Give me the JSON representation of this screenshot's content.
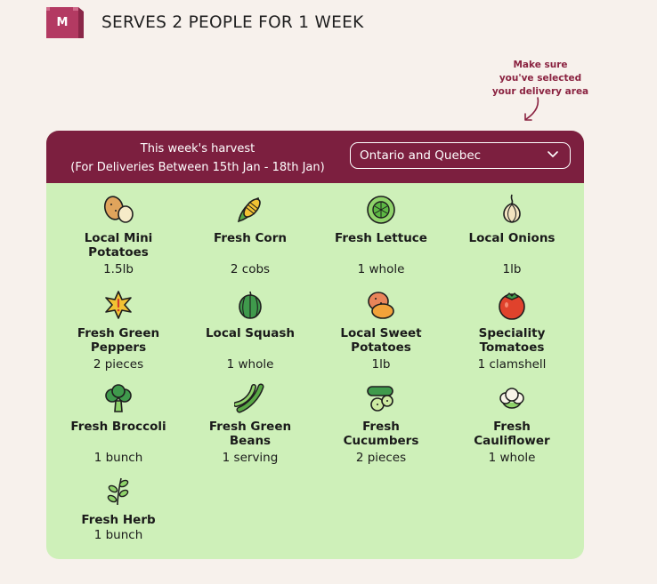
{
  "header": {
    "logo_letter": "M",
    "title": "SERVES 2 PEOPLE FOR 1 WEEK"
  },
  "note": {
    "line1": "Make sure",
    "line2": "you've selected",
    "line3": "your delivery area"
  },
  "harvest": {
    "title": "This week's harvest",
    "subtitle": "(For Deliveries Between 15th Jan - 18th Jan)",
    "region": "Ontario and Quebec"
  },
  "items": [
    {
      "name1": "Local Mini",
      "name2": "Potatoes",
      "qty": "1.5lb",
      "icon": "potato-icon"
    },
    {
      "name1": "Fresh Corn",
      "name2": "",
      "qty": "2 cobs",
      "icon": "corn-icon"
    },
    {
      "name1": "Fresh Lettuce",
      "name2": "",
      "qty": "1 whole",
      "icon": "lettuce-icon"
    },
    {
      "name1": "Local Onions",
      "name2": "",
      "qty": "1lb",
      "icon": "onion-icon"
    },
    {
      "name1": "Fresh Green",
      "name2": "Peppers",
      "qty": "2 pieces",
      "icon": "pepper-icon"
    },
    {
      "name1": "Local Squash",
      "name2": "",
      "qty": "1 whole",
      "icon": "squash-icon"
    },
    {
      "name1": "Local Sweet",
      "name2": "Potatoes",
      "qty": "1lb",
      "icon": "sweet-potato-icon"
    },
    {
      "name1": "Speciality",
      "name2": "Tomatoes",
      "qty": "1 clamshell",
      "icon": "tomato-icon"
    },
    {
      "name1": "Fresh Broccoli",
      "name2": "",
      "qty": "1 bunch",
      "icon": "broccoli-icon"
    },
    {
      "name1": "Fresh Green",
      "name2": "Beans",
      "qty": "1 serving",
      "icon": "green-beans-icon"
    },
    {
      "name1": "Fresh",
      "name2": "Cucumbers",
      "qty": "2 pieces",
      "icon": "cucumber-icon"
    },
    {
      "name1": "Fresh",
      "name2": "Cauliflower",
      "qty": "1 whole",
      "icon": "cauliflower-icon"
    },
    {
      "name1": "Fresh Herb",
      "name2": "",
      "qty": "1 bunch",
      "icon": "herb-icon"
    }
  ],
  "colors": {
    "brand": "#7c1f3f",
    "card_bg": "#cef0b9",
    "page_bg": "#f7f1ec"
  }
}
